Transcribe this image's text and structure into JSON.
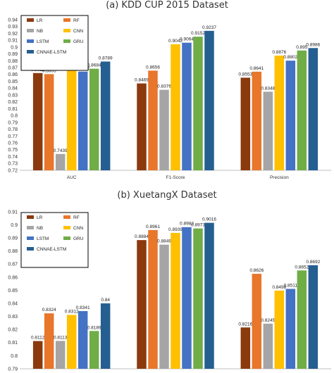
{
  "chart_data": [
    {
      "type": "bar",
      "title": "(a) KDD CUP 2015 Dataset",
      "categories": [
        "AUC",
        "F1-Score",
        "Precision"
      ],
      "ylim": [
        0.72,
        0.94
      ],
      "ytick_step": 0.01,
      "grid": false,
      "legend": "top-left",
      "series": [
        {
          "name": "LR",
          "color": "#8B3A0E",
          "values": [
            0.8621,
            0.8469,
            0.8553
          ]
        },
        {
          "name": "RF",
          "color": "#E8762B",
          "values": [
            0.8605,
            0.8656,
            0.8641
          ]
        },
        {
          "name": "NB",
          "color": "#A5A5A5",
          "values": [
            0.7439,
            0.8376,
            0.8348
          ]
        },
        {
          "name": "CNN",
          "color": "#FFC000",
          "values": [
            0.8715,
            0.9042,
            0.8876
          ]
        },
        {
          "name": "LSTM",
          "color": "#4472C4",
          "values": [
            0.8642,
            0.9064,
            0.8802
          ]
        },
        {
          "name": "GRU",
          "color": "#70AD47",
          "values": [
            0.8684,
            0.9152,
            0.895
          ]
        },
        {
          "name": "CNNAE-LSTM",
          "color": "#255E91",
          "values": [
            0.8789,
            0.9237,
            0.8986
          ]
        }
      ]
    },
    {
      "type": "bar",
      "title": "(b) XuetangX Dataset",
      "categories": [
        "AUC",
        "F1-Score",
        "Precision"
      ],
      "ylim": [
        0.79,
        0.91
      ],
      "ytick_step": 0.01,
      "grid": false,
      "legend": "top-left",
      "series": [
        {
          "name": "LR",
          "color": "#8B3A0E",
          "values": [
            0.8112,
            0.8884,
            0.8216
          ]
        },
        {
          "name": "RF",
          "color": "#E8762B",
          "values": [
            0.8324,
            0.8961,
            0.8626
          ]
        },
        {
          "name": "NB",
          "color": "#A5A5A5",
          "values": [
            0.8113,
            0.8849,
            0.8245
          ]
        },
        {
          "name": "CNN",
          "color": "#FFC000",
          "values": [
            0.8312,
            0.8939,
            0.8498
          ]
        },
        {
          "name": "LSTM",
          "color": "#4472C4",
          "values": [
            0.8341,
            0.8983,
            0.8511
          ]
        },
        {
          "name": "GRU",
          "color": "#70AD47",
          "values": [
            0.8189,
            0.8973,
            0.8652
          ]
        },
        {
          "name": "CNNAE-LSTM",
          "color": "#255E91",
          "values": [
            0.84,
            0.9016,
            0.8692
          ]
        }
      ]
    }
  ]
}
